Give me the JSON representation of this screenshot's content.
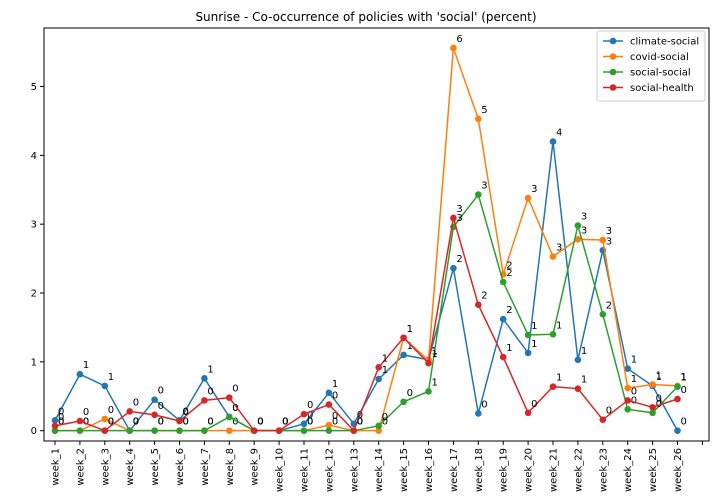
{
  "chart_data": {
    "type": "line",
    "title": "Sunrise - Co-occurrence of policies with 'social' (percent)",
    "xlabel": "",
    "ylabel": "",
    "ylim": [
      -0.15,
      5.85
    ],
    "yticks": [
      0,
      1,
      2,
      3,
      4,
      5
    ],
    "grid": false,
    "legend_position": "top-right",
    "categories": [
      "week_1",
      "week_2",
      "week_3",
      "week_4",
      "week_5",
      "week_6",
      "week_7",
      "week_8",
      "week_9",
      "week_10",
      "week_11",
      "week_12",
      "week_13",
      "week_14",
      "week_15",
      "week_16",
      "week_17",
      "week_18",
      "week_19",
      "week_20",
      "week_21",
      "week_22",
      "week_23",
      "week_24",
      "week_25",
      "week_26"
    ],
    "series": [
      {
        "name": "climate-social",
        "color": "#1f77b4",
        "values": [
          0.15,
          0.82,
          0.65,
          0,
          0.45,
          0.15,
          0.76,
          0.2,
          0,
          0,
          0.1,
          0.55,
          0.1,
          0.75,
          1.1,
          1.03,
          2.36,
          0.25,
          1.62,
          1.13,
          4.2,
          1.03,
          2.62,
          0.9,
          0.65,
          0
        ],
        "labels": [
          "0",
          "1",
          "1",
          "0",
          "0",
          "0",
          "1",
          "0",
          "0",
          "0",
          "0",
          "1",
          "0",
          "1",
          "1",
          "1",
          "2",
          "0",
          "2",
          "1",
          "4",
          "1",
          "3",
          "1",
          "1",
          "0"
        ]
      },
      {
        "name": "covid-social",
        "color": "#ff7f0e",
        "values": [
          0,
          0,
          0.17,
          0,
          0,
          0,
          0,
          0,
          0,
          0,
          0,
          0.08,
          0,
          0,
          1.35,
          1.02,
          5.56,
          4.53,
          2.27,
          3.38,
          2.53,
          2.78,
          2.77,
          0.62,
          0.67,
          0.65
        ],
        "labels": [
          "0",
          "0",
          "0",
          "0",
          "0",
          "0",
          "0",
          "0",
          "0",
          "0",
          "0",
          "0",
          "0",
          "0",
          "1",
          "1",
          "6",
          "5",
          "2",
          "3",
          "3",
          "3",
          "3",
          "1",
          "1",
          "1"
        ]
      },
      {
        "name": "social-social",
        "color": "#2ca02c",
        "values": [
          0,
          0,
          0,
          0,
          0,
          0,
          0,
          0.2,
          0,
          0,
          0,
          0,
          0,
          0.07,
          0.42,
          0.57,
          2.96,
          3.43,
          2.16,
          1.39,
          1.4,
          2.98,
          1.69,
          0.31,
          0.26,
          0.64
        ],
        "labels": [
          "0",
          "0",
          "0",
          "0",
          "0",
          "0",
          "0",
          "0",
          "0",
          "0",
          "0",
          "0",
          "0",
          "0",
          "0",
          "1",
          "3",
          "3",
          "2",
          "1",
          "1",
          "3",
          "2",
          "0",
          "0",
          "1"
        ]
      },
      {
        "name": "social-health",
        "color": "#d62728",
        "values": [
          0.07,
          0.14,
          0,
          0.28,
          0.23,
          0.14,
          0.44,
          0.48,
          0,
          0,
          0.24,
          0.38,
          0,
          0.92,
          1.35,
          0.98,
          3.09,
          1.83,
          1.07,
          0.26,
          0.64,
          0.61,
          0.16,
          0.44,
          0.34,
          0.46
        ],
        "labels": [
          "0",
          "0",
          "0",
          "0",
          "0",
          "0",
          "0",
          "0",
          "0",
          "0",
          "0",
          "0",
          "0",
          "1",
          "1",
          "1",
          "3",
          "2",
          "1",
          "0",
          "1",
          "1",
          "0",
          "0",
          "0",
          "0"
        ]
      }
    ]
  }
}
